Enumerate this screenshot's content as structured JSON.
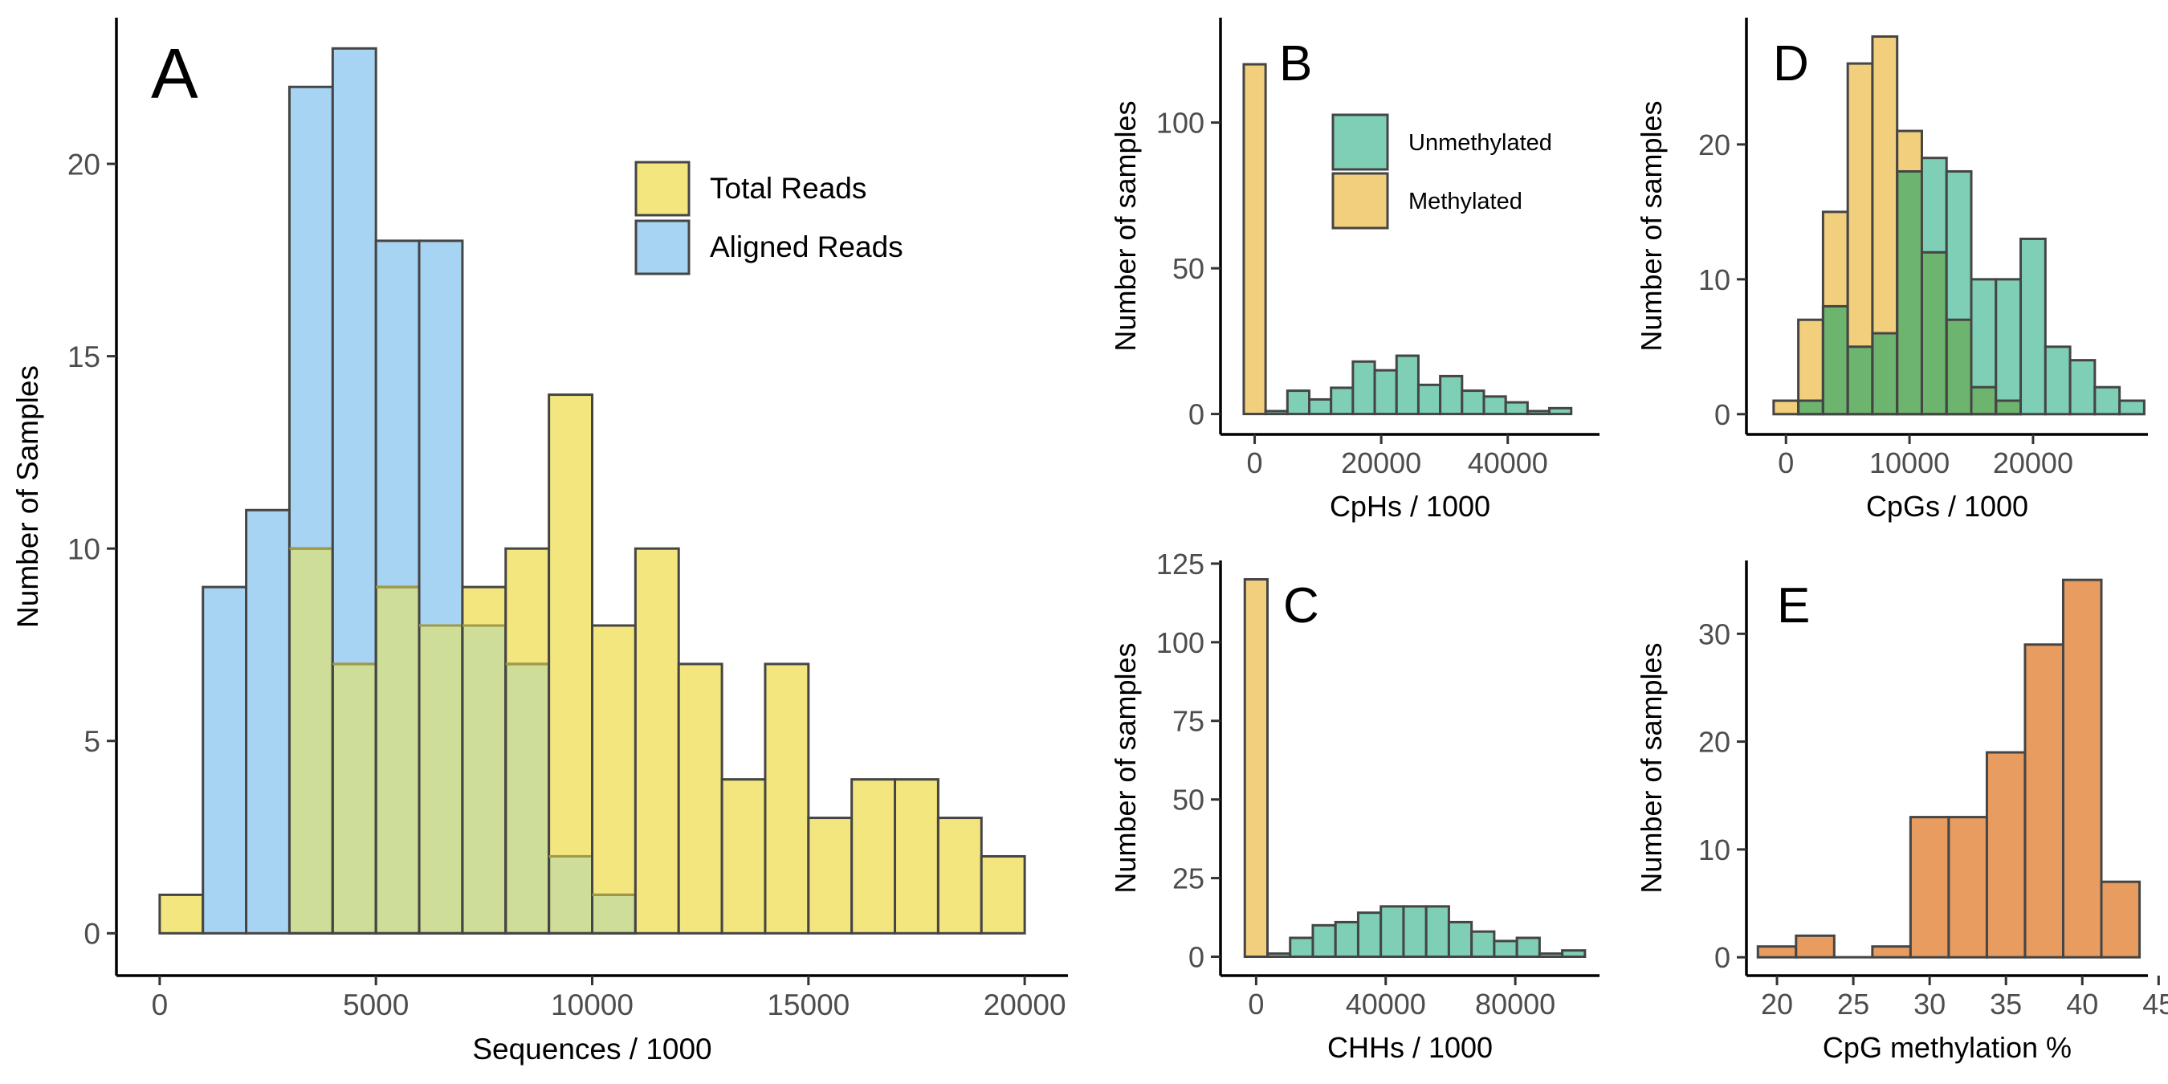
{
  "colors": {
    "total": "#f3e67e",
    "aligned": "#a6d4f2",
    "overlap": "#cedd98",
    "unmethylated": "#7ecfb6",
    "methylated": "#f2cf7d",
    "overlap_green": "#6db56e",
    "cpg_meth": "#e89c60",
    "stroke": "#454545",
    "axis_text": "#4d4d4d"
  },
  "chart_data": [
    {
      "id": "A",
      "type": "histogram",
      "panel_label": "A",
      "xlabel": "Sequences / 1000",
      "ylabel": "Number of Samples",
      "xlim": [
        -1000,
        21000
      ],
      "ylim": [
        -1.1,
        23.8
      ],
      "xticks": [
        0,
        5000,
        10000,
        15000,
        20000
      ],
      "yticks": [
        0,
        5,
        10,
        15,
        20
      ],
      "bin_start": 0,
      "bin_width": 1000,
      "legend": {
        "position": "top-right"
      },
      "series": [
        {
          "name": "Total Reads",
          "color_key": "total",
          "values": [
            1,
            0,
            0,
            10,
            7,
            9,
            8,
            9,
            10,
            14,
            8,
            10,
            7,
            4,
            7,
            3,
            4,
            4,
            3,
            2
          ]
        },
        {
          "name": "Aligned Reads",
          "color_key": "aligned",
          "values": [
            0,
            9,
            11,
            22,
            23,
            18,
            18,
            8,
            7,
            2,
            1,
            0,
            0,
            0,
            0,
            0,
            0,
            0,
            0,
            0
          ]
        }
      ]
    },
    {
      "id": "B",
      "type": "histogram",
      "panel_label": "B",
      "xlabel": "CpHs / 1000",
      "ylabel": "Number of samples",
      "xlim": [
        -5400,
        54500
      ],
      "ylim": [
        -7,
        136
      ],
      "xticks": [
        0,
        20000,
        40000
      ],
      "yticks": [
        0,
        50,
        100
      ],
      "bin_start": -1725,
      "bin_width": 3450,
      "legend": {
        "position": "top-center"
      },
      "series": [
        {
          "name": "Unmethylated",
          "color_key": "unmethylated",
          "values": [
            0,
            1,
            8,
            5,
            9,
            18,
            15,
            20,
            10,
            13,
            8,
            6,
            4,
            1,
            2
          ]
        },
        {
          "name": "Methylated",
          "color_key": "methylated",
          "values": [
            120,
            0,
            0,
            0,
            0,
            0,
            0,
            0,
            0,
            0,
            0,
            0,
            0,
            0,
            0
          ]
        }
      ]
    },
    {
      "id": "C",
      "type": "histogram",
      "panel_label": "C",
      "xlabel": "CHHs / 1000",
      "ylabel": "Number of samples",
      "xlim": [
        -11000,
        106000
      ],
      "ylim": [
        -6,
        126
      ],
      "xticks": [
        0,
        40000,
        80000
      ],
      "yticks": [
        0,
        25,
        50,
        75,
        100,
        125
      ],
      "bin_start": -3500,
      "bin_width": 7000,
      "series": [
        {
          "name": "Unmethylated",
          "color_key": "unmethylated",
          "values": [
            0,
            1,
            6,
            10,
            11,
            14,
            16,
            16,
            16,
            11,
            8,
            5,
            6,
            1,
            2
          ]
        },
        {
          "name": "Methylated",
          "color_key": "methylated",
          "values": [
            120,
            0,
            0,
            0,
            0,
            0,
            0,
            0,
            0,
            0,
            0,
            0,
            0,
            0,
            0
          ]
        }
      ]
    },
    {
      "id": "D",
      "type": "histogram",
      "panel_label": "D",
      "xlabel": "CpGs / 1000",
      "ylabel": "Number of samples",
      "xlim": [
        -3200,
        29300
      ],
      "ylim": [
        -1.5,
        29.4
      ],
      "xticks": [
        0,
        10000,
        20000
      ],
      "yticks": [
        0,
        10,
        20
      ],
      "bin_start": -1000,
      "bin_width": 2000,
      "series": [
        {
          "name": "Methylated",
          "color_key": "methylated",
          "values": [
            1,
            7,
            15,
            26,
            28,
            21,
            12,
            7,
            2,
            1,
            0,
            0,
            0,
            0,
            0
          ]
        },
        {
          "name": "Unmethylated",
          "color_key": "unmethylated",
          "values": [
            0,
            1,
            8,
            5,
            6,
            18,
            19,
            18,
            10,
            10,
            13,
            5,
            4,
            2,
            1
          ]
        }
      ]
    },
    {
      "id": "E",
      "type": "histogram",
      "panel_label": "E",
      "xlabel": "CpG methylation %",
      "ylabel": "Number of samples",
      "xlim": [
        18,
        44.3
      ],
      "ylim": [
        -1.7,
        36.8
      ],
      "xticks": [
        20,
        25,
        30,
        35,
        40,
        45
      ],
      "yticks": [
        0,
        10,
        20,
        30
      ],
      "bin_start": 18.75,
      "bin_width": 2.5,
      "series": [
        {
          "name": "CpG methylation",
          "color_key": "cpg_meth",
          "values": [
            1,
            2,
            0,
            1,
            13,
            13,
            19,
            29,
            35,
            7
          ]
        }
      ]
    }
  ]
}
